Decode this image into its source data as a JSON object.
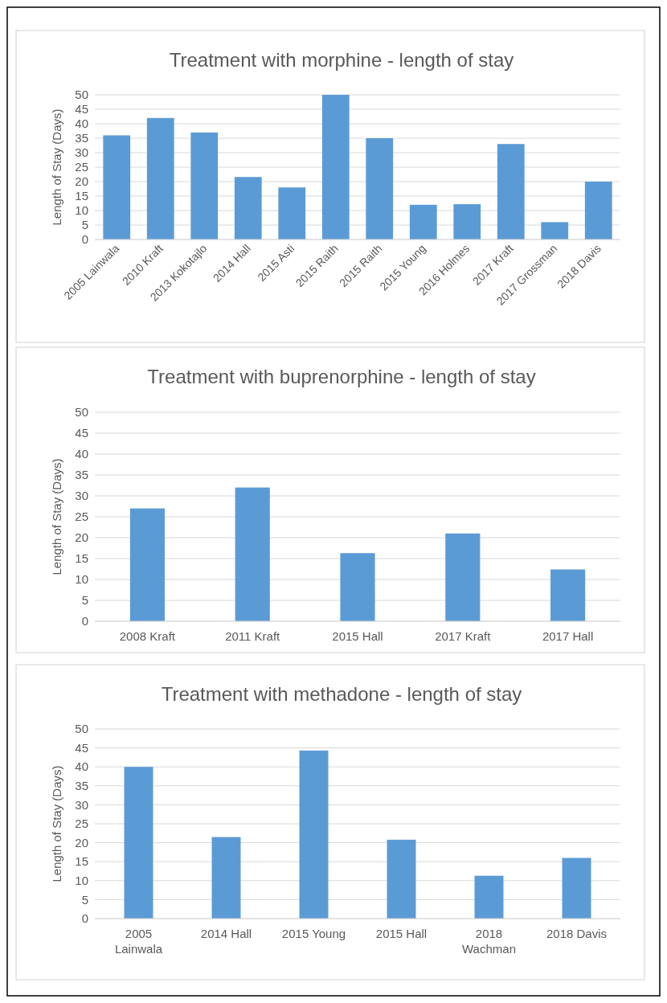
{
  "chart_data": [
    {
      "type": "bar",
      "title": "Treatment with morphine - length of stay",
      "ylabel": "Length of Stay (Days)",
      "categories": [
        "2005 Lainwala",
        "2010 Kraft",
        "2013 Kokotajlo",
        "2014 Hall",
        "2015 Asti",
        "2015 Raith",
        "2015 Raith",
        "2015 Young",
        "2016 Holmes",
        "2017 Kraft",
        "2017 Grossman",
        "2018 Davis"
      ],
      "values": [
        36,
        42,
        37,
        21.6,
        18,
        50,
        35,
        12,
        12.2,
        33,
        6,
        20
      ],
      "color": "#5b9bd5",
      "ylim": [
        0,
        50
      ],
      "yticks": [
        0,
        5,
        10,
        15,
        20,
        25,
        30,
        35,
        40,
        45,
        50
      ],
      "grid": "y"
    },
    {
      "type": "bar",
      "title": "Treatment with buprenorphine - length of stay",
      "ylabel": "Length of Stay (Days)",
      "categories": [
        "2008 Kraft",
        "2011 Kraft",
        "2015 Hall",
        "2017 Kraft",
        "2017 Hall"
      ],
      "values": [
        27,
        32,
        16.3,
        21,
        12.4
      ],
      "color": "#5b9bd5",
      "ylim": [
        0,
        50
      ],
      "yticks": [
        0,
        5,
        10,
        15,
        20,
        25,
        30,
        35,
        40,
        45,
        50
      ],
      "grid": "y"
    },
    {
      "type": "bar",
      "title": "Treatment with methadone - length of stay",
      "ylabel": "Length of Stay (Days)",
      "categories": [
        "2005 Lainwala",
        "2014 Hall",
        "2015 Young",
        "2015 Hall",
        "2018 Wachman",
        "2018 Davis"
      ],
      "values": [
        40,
        21.5,
        44.3,
        20.8,
        11.3,
        16
      ],
      "color": "#5b9bd5",
      "ylim": [
        0,
        50
      ],
      "yticks": [
        0,
        5,
        10,
        15,
        20,
        25,
        30,
        35,
        40,
        45,
        50
      ],
      "grid": "y"
    }
  ]
}
